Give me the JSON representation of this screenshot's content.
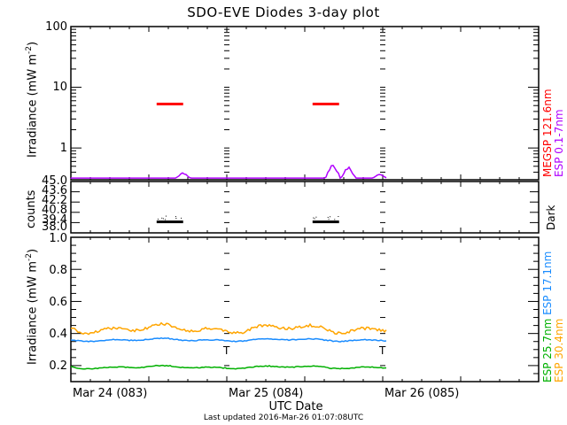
{
  "title": "SDO-EVE Diodes 3-day plot",
  "footer": {
    "xaxis_label": "UTC Date",
    "last_updated": "Last updated 2016-Mar-26 01:07:08UTC"
  },
  "colors": {
    "megsp_121": "#ff0000",
    "esp_0_1_7": "#b000ff",
    "dark": "#000000",
    "esp_17_1": "#1a8cff",
    "esp_25_7": "#00b000",
    "esp_30_4": "#ffa500"
  },
  "chart_data": [
    {
      "type": "scatter",
      "panel": "top",
      "title": "SDO-EVE Diodes 3-day plot",
      "ylabel": "Irradiance (mW m^-2)",
      "yscale": "log",
      "ylim": [
        0.3,
        100
      ],
      "ytick_labels": [
        "100",
        "10",
        "1"
      ],
      "legend_right": [
        "MEGSP 121.6nm",
        "ESP 0.1-7nm"
      ],
      "series": [
        {
          "name": "MEGSP 121.6nm",
          "color": "#ff0000",
          "segments": [
            {
              "x_day": [
                0.55,
                0.72
              ],
              "y": 5.3
            },
            {
              "x_day": [
                1.55,
                1.72
              ],
              "y": 5.3
            }
          ]
        },
        {
          "name": "ESP 0.1-7nm",
          "color": "#b000ff",
          "baseline": 0.32,
          "bumps": [
            {
              "x_day": 0.72,
              "y": 0.42
            },
            {
              "x_day": 1.68,
              "y": 0.65
            },
            {
              "x_day": 1.78,
              "y": 0.55
            },
            {
              "x_day": 1.98,
              "y": 0.38
            }
          ]
        }
      ]
    },
    {
      "type": "scatter",
      "panel": "middle",
      "ylabel": "counts",
      "ylim": [
        38.0,
        45.0
      ],
      "ytick_labels": [
        "45.0",
        "43.6",
        "42.2",
        "40.8",
        "39.4",
        "38.0"
      ],
      "legend_right": [
        "Dark"
      ],
      "series": [
        {
          "name": "Dark",
          "color": "#000000",
          "clusters": [
            {
              "x_day": [
                0.55,
                0.72
              ],
              "y": 39.5
            },
            {
              "x_day": [
                1.55,
                1.72
              ],
              "y": 39.5
            }
          ]
        }
      ]
    },
    {
      "type": "line",
      "panel": "bottom",
      "ylabel": "Irradiance (mW m^-2)",
      "xlabel": "UTC Date",
      "ylim": [
        0.1,
        1.0
      ],
      "ytick_labels": [
        "1.0",
        "0.8",
        "0.6",
        "0.4",
        "0.2"
      ],
      "categories": [
        "Mar 24 (083)",
        "Mar 25 (084)",
        "Mar 26 (085)"
      ],
      "x_range_days": [
        0,
        3
      ],
      "data_end_day": 2.03,
      "legend_right": [
        "ESP 25.7nm",
        "ESP 17.1nm",
        "ESP 30.4nm"
      ],
      "series": [
        {
          "name": "ESP 30.4nm",
          "color": "#ffa500",
          "mean": 0.43,
          "range": [
            0.4,
            0.46
          ]
        },
        {
          "name": "ESP 17.1nm",
          "color": "#1a8cff",
          "mean": 0.36,
          "range": [
            0.355,
            0.375
          ]
        },
        {
          "name": "ESP 25.7nm",
          "color": "#00b000",
          "mean": 0.19,
          "range": [
            0.18,
            0.2
          ]
        }
      ]
    }
  ]
}
